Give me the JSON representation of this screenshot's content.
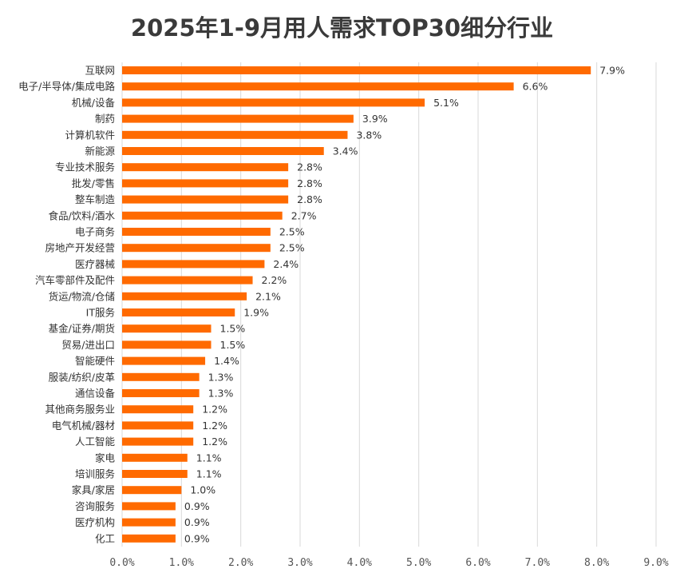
{
  "chart_data": {
    "type": "bar",
    "orientation": "horizontal",
    "title": "2025年1-9月用人需求TOP30细分行业",
    "xlabel": "",
    "ylabel": "",
    "xlim": [
      0,
      9
    ],
    "ticks": [
      "0.0%",
      "1.0%",
      "2.0%",
      "3.0%",
      "4.0%",
      "5.0%",
      "6.0%",
      "7.0%",
      "8.0%",
      "9.0%"
    ],
    "grid": true,
    "bar_color": "#ff6a00",
    "categories": [
      "互联网",
      "电子/半导体/集成电路",
      "机械/设备",
      "制药",
      "计算机软件",
      "新能源",
      "专业技术服务",
      "批发/零售",
      "整车制造",
      "食品/饮料/酒水",
      "电子商务",
      "房地产开发经营",
      "医疗器械",
      "汽车零部件及配件",
      "货运/物流/仓储",
      "IT服务",
      "基金/证券/期货",
      "贸易/进出口",
      "智能硬件",
      "服装/纺织/皮革",
      "通信设备",
      "其他商务服务业",
      "电气机械/器材",
      "人工智能",
      "家电",
      "培训服务",
      "家具/家居",
      "咨询服务",
      "医疗机构",
      "化工"
    ],
    "values": [
      7.9,
      6.6,
      5.1,
      3.9,
      3.8,
      3.4,
      2.8,
      2.8,
      2.8,
      2.7,
      2.5,
      2.5,
      2.4,
      2.2,
      2.1,
      1.9,
      1.5,
      1.5,
      1.4,
      1.3,
      1.3,
      1.2,
      1.2,
      1.2,
      1.1,
      1.1,
      1.0,
      0.9,
      0.9,
      0.9
    ],
    "value_labels": [
      "7.9%",
      "6.6%",
      "5.1%",
      "3.9%",
      "3.8%",
      "3.4%",
      "2.8%",
      "2.8%",
      "2.8%",
      "2.7%",
      "2.5%",
      "2.5%",
      "2.4%",
      "2.2%",
      "2.1%",
      "1.9%",
      "1.5%",
      "1.5%",
      "1.4%",
      "1.3%",
      "1.3%",
      "1.2%",
      "1.2%",
      "1.2%",
      "1.1%",
      "1.1%",
      "1.0%",
      "0.9%",
      "0.9%",
      "0.9%"
    ]
  }
}
